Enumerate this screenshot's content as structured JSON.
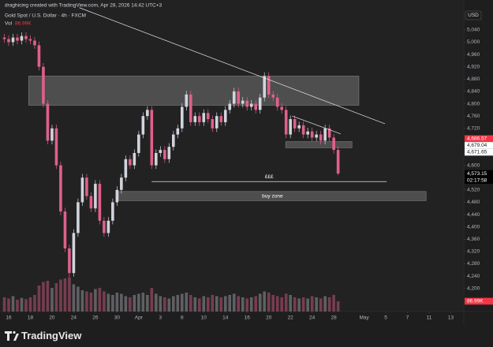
{
  "chart_data": {
    "type": "candlestick",
    "attribution": "draghicing created with TradingView.com, Apr 28, 2026 14:42 UTC+3",
    "symbol": "Gold Spot / U.S. Dollar · 4h · FXCM",
    "volume_title": "Vol",
    "currency": "USD",
    "brand": "TradingView",
    "countdown": "02:17:58",
    "up_color": "#d1d4dc",
    "down_color": "#e0608a",
    "grid": false,
    "xlim": [
      -1,
      106
    ],
    "ylim": [
      4125,
      5137
    ],
    "y2lim": [
      0,
      300
    ],
    "xticks": [
      {
        "value": 1,
        "label": "16"
      },
      {
        "value": 6,
        "label": "18"
      },
      {
        "value": 11,
        "label": "20"
      },
      {
        "value": 16,
        "label": "24"
      },
      {
        "value": 21,
        "label": "26"
      },
      {
        "value": 26,
        "label": "30"
      },
      {
        "value": 31,
        "label": "Apr"
      },
      {
        "value": 36,
        "label": "3"
      },
      {
        "value": 41,
        "label": "8"
      },
      {
        "value": 46,
        "label": "10"
      },
      {
        "value": 51,
        "label": "14"
      },
      {
        "value": 56,
        "label": "16"
      },
      {
        "value": 61,
        "label": "20"
      },
      {
        "value": 66,
        "label": "22"
      },
      {
        "value": 71,
        "label": "24"
      },
      {
        "value": 76,
        "label": "28"
      },
      {
        "value": 83,
        "label": "May"
      },
      {
        "value": 88,
        "label": "5"
      },
      {
        "value": 93,
        "label": "7"
      },
      {
        "value": 98,
        "label": "11"
      },
      {
        "value": 103,
        "label": "13"
      }
    ],
    "yticks": [
      {
        "value": 5040,
        "label": "5,040"
      },
      {
        "value": 5000,
        "label": "5,000"
      },
      {
        "value": 4960,
        "label": "4,960"
      },
      {
        "value": 4920,
        "label": "4,920"
      },
      {
        "value": 4880,
        "label": "4,880"
      },
      {
        "value": 4840,
        "label": "4,840"
      },
      {
        "value": 4800,
        "label": "4,800"
      },
      {
        "value": 4760,
        "label": "4,760"
      },
      {
        "value": 4720,
        "label": "4,720"
      },
      {
        "value": 4640,
        "label": "4,640"
      },
      {
        "value": 4600,
        "label": "4,600"
      },
      {
        "value": 4560,
        "label": "4,560"
      },
      {
        "value": 4520,
        "label": "4,520"
      },
      {
        "value": 4480,
        "label": "4,480"
      },
      {
        "value": 4440,
        "label": "4,440"
      },
      {
        "value": 4400,
        "label": "4,400"
      },
      {
        "value": 4360,
        "label": "4,360"
      },
      {
        "value": 4320,
        "label": "4,320"
      },
      {
        "value": 4280,
        "label": "4,280"
      },
      {
        "value": 4240,
        "label": "4,240"
      },
      {
        "value": 4200,
        "label": "4,200"
      }
    ],
    "candles": {
      "open": [
        5015,
        5010,
        5000,
        5015,
        5005,
        5020,
        5010,
        5005,
        4990,
        4920,
        4800,
        4680,
        4720,
        4600,
        4450,
        4330,
        4250,
        4380,
        4480,
        4560,
        4500,
        4460,
        4540,
        4420,
        4380,
        4420,
        4480,
        4520,
        4560,
        4620,
        4600,
        4640,
        4700,
        4760,
        4780,
        4600,
        4640,
        4650,
        4620,
        4660,
        4700,
        4720,
        4790,
        4830,
        4740,
        4760,
        4740,
        4770,
        4750,
        4720,
        4760,
        4740,
        4780,
        4800,
        4840,
        4800,
        4810,
        4790,
        4800,
        4780,
        4820,
        4890,
        4830,
        4820,
        4790,
        4780,
        4700,
        4750,
        4720,
        4730,
        4700,
        4710,
        4690,
        4700,
        4680,
        4720,
        4690,
        4650
      ],
      "high": [
        5027,
        5022,
        5027,
        5027,
        5032,
        5032,
        5022,
        5017,
        5002,
        4932,
        4812,
        4732,
        4732,
        4612,
        4462,
        4342,
        4392,
        4492,
        4572,
        4572,
        4512,
        4552,
        4552,
        4432,
        4432,
        4492,
        4532,
        4572,
        4632,
        4632,
        4652,
        4712,
        4772,
        4792,
        4792,
        4652,
        4662,
        4662,
        4672,
        4712,
        4732,
        4802,
        4842,
        4842,
        4772,
        4772,
        4782,
        4782,
        4762,
        4772,
        4772,
        4792,
        4812,
        4852,
        4852,
        4822,
        4822,
        4812,
        4812,
        4832,
        4902,
        4902,
        4842,
        4832,
        4802,
        4792,
        4762,
        4762,
        4742,
        4742,
        4722,
        4722,
        4712,
        4712,
        4732,
        4732,
        4702,
        4662
      ],
      "low": [
        4998,
        4988,
        4988,
        4993,
        4993,
        4998,
        4993,
        4978,
        4908,
        4788,
        4668,
        4668,
        4588,
        4438,
        4318,
        4238,
        4238,
        4368,
        4468,
        4488,
        4448,
        4448,
        4408,
        4368,
        4368,
        4408,
        4468,
        4508,
        4548,
        4588,
        4588,
        4628,
        4688,
        4748,
        4588,
        4588,
        4628,
        4608,
        4608,
        4648,
        4688,
        4708,
        4778,
        4728,
        4728,
        4728,
        4728,
        4738,
        4708,
        4708,
        4728,
        4728,
        4768,
        4788,
        4788,
        4788,
        4778,
        4778,
        4768,
        4768,
        4808,
        4818,
        4808,
        4778,
        4768,
        4688,
        4688,
        4708,
        4708,
        4688,
        4688,
        4678,
        4678,
        4668,
        4668,
        4678,
        4638,
        4568
      ],
      "close": [
        5010,
        5000,
        5015,
        5005,
        5020,
        5010,
        5005,
        4990,
        4920,
        4800,
        4680,
        4720,
        4600,
        4450,
        4330,
        4250,
        4380,
        4480,
        4560,
        4500,
        4460,
        4540,
        4420,
        4380,
        4420,
        4480,
        4520,
        4560,
        4620,
        4600,
        4640,
        4700,
        4760,
        4780,
        4600,
        4640,
        4650,
        4620,
        4660,
        4700,
        4720,
        4790,
        4830,
        4740,
        4760,
        4740,
        4770,
        4750,
        4720,
        4760,
        4740,
        4780,
        4800,
        4840,
        4800,
        4810,
        4790,
        4800,
        4780,
        4820,
        4890,
        4830,
        4820,
        4790,
        4780,
        4700,
        4750,
        4720,
        4730,
        4700,
        4710,
        4690,
        4700,
        4680,
        4720,
        4690,
        4650,
        4573.15
      ]
    },
    "volume": [
      120,
      110,
      130,
      100,
      115,
      105,
      120,
      140,
      220,
      250,
      260,
      200,
      240,
      270,
      280,
      290,
      230,
      210,
      180,
      170,
      160,
      190,
      200,
      170,
      150,
      140,
      160,
      150,
      130,
      120,
      140,
      150,
      160,
      140,
      200,
      150,
      130,
      120,
      110,
      130,
      140,
      150,
      160,
      140,
      120,
      110,
      130,
      120,
      140,
      130,
      120,
      130,
      140,
      150,
      130,
      120,
      110,
      120,
      130,
      150,
      170,
      160,
      140,
      130,
      120,
      150,
      140,
      120,
      110,
      120,
      110,
      130,
      120,
      110,
      130,
      120,
      140,
      86.99
    ],
    "last_volume": {
      "value": 86.99,
      "label": "86.99K"
    },
    "price_labels": [
      {
        "value": 4686.57,
        "label": "4,686.57",
        "color": "#f23645",
        "text_color": "#ffffff"
      },
      {
        "value": 4679.04,
        "label": "4,679.04",
        "color": "#ffffff",
        "text_color": "#131722"
      },
      {
        "value": 4671.65,
        "label": "4,671.65",
        "color": "#ffffff",
        "text_color": "#131722"
      },
      {
        "value": 4573.15,
        "label": "4,573.15",
        "color": "#000000",
        "text_color": "#ffffff"
      }
    ],
    "zones": [
      {
        "x": [
          5.6,
          81.8
        ],
        "y": [
          4890,
          4795
        ]
      },
      {
        "x": [
          64.9,
          80.2
        ],
        "y": [
          4677,
          4657
        ]
      },
      {
        "x": [
          26.4,
          97.3
        ],
        "y": [
          4515,
          4485
        ],
        "label": "buy zone"
      }
    ],
    "lines": [
      {
        "x": [
          17.3,
          87.8
        ],
        "y": [
          5112,
          4735
        ]
      },
      {
        "x": [
          66.4,
          77.6
        ],
        "y": [
          4760,
          4702
        ]
      },
      {
        "x": [
          34,
          88.2
        ],
        "y": [
          4547,
          4547
        ],
        "label": "£££"
      }
    ]
  }
}
